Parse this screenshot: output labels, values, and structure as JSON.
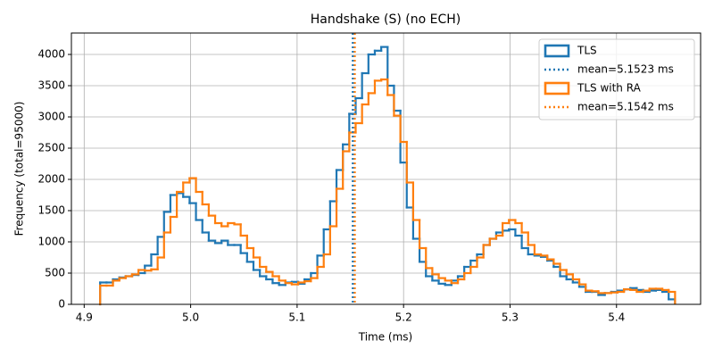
{
  "chart_data": {
    "type": "histogram",
    "title": "Handshake (S) (no ECH)",
    "x_label": "Time (ms)",
    "y_label": "Frequency (total=95000)",
    "bins": [
      4.915,
      4.921,
      4.927,
      4.933,
      4.939,
      4.945,
      4.951,
      4.957,
      4.963,
      4.969,
      4.975,
      4.981,
      4.987,
      4.993,
      4.999,
      5.005,
      5.011,
      5.017,
      5.023,
      5.029,
      5.035,
      5.041,
      5.047,
      5.053,
      5.059,
      5.065,
      5.071,
      5.077,
      5.083,
      5.089,
      5.095,
      5.101,
      5.107,
      5.113,
      5.119,
      5.125,
      5.131,
      5.137,
      5.143,
      5.149,
      5.155,
      5.161,
      5.167,
      5.173,
      5.179,
      5.185,
      5.191,
      5.197,
      5.203,
      5.209,
      5.215,
      5.221,
      5.227,
      5.233,
      5.239,
      5.245,
      5.251,
      5.257,
      5.263,
      5.269,
      5.275,
      5.281,
      5.287,
      5.293,
      5.299,
      5.305,
      5.311,
      5.317,
      5.323,
      5.329,
      5.335,
      5.341,
      5.347,
      5.353,
      5.359,
      5.365,
      5.371,
      5.377,
      5.383,
      5.389,
      5.395,
      5.401,
      5.407,
      5.413,
      5.419,
      5.425,
      5.431,
      5.437,
      5.443,
      5.449,
      5.455
    ],
    "series": [
      {
        "name": "TLS",
        "color": "#1f77b4",
        "values": [
          350,
          350,
          400,
          430,
          450,
          470,
          500,
          620,
          800,
          1080,
          1480,
          1750,
          1780,
          1720,
          1620,
          1350,
          1150,
          1020,
          980,
          1020,
          950,
          950,
          820,
          680,
          550,
          450,
          400,
          340,
          310,
          350,
          360,
          330,
          400,
          500,
          780,
          1200,
          1650,
          2150,
          2560,
          3050,
          3300,
          3700,
          4000,
          4060,
          4120,
          3500,
          3100,
          2270,
          1550,
          1050,
          680,
          450,
          380,
          330,
          310,
          380,
          450,
          600,
          700,
          800,
          950,
          1050,
          1150,
          1180,
          1200,
          1100,
          900,
          800,
          780,
          760,
          700,
          600,
          450,
          400,
          350,
          280,
          200,
          200,
          150,
          180,
          200,
          220,
          240,
          260,
          230,
          200,
          220,
          230,
          200,
          80
        ]
      },
      {
        "name": "TLS with RA",
        "color": "#ff7f0e",
        "values": [
          300,
          300,
          380,
          420,
          450,
          480,
          550,
          540,
          560,
          750,
          1150,
          1400,
          1800,
          1950,
          2020,
          1800,
          1600,
          1420,
          1300,
          1250,
          1300,
          1280,
          1100,
          900,
          750,
          600,
          520,
          450,
          380,
          340,
          320,
          350,
          370,
          420,
          600,
          800,
          1250,
          1850,
          2450,
          2750,
          2900,
          3200,
          3380,
          3580,
          3600,
          3350,
          3020,
          2600,
          1950,
          1350,
          900,
          580,
          480,
          420,
          380,
          340,
          400,
          500,
          600,
          750,
          950,
          1050,
          1100,
          1300,
          1350,
          1300,
          1150,
          950,
          800,
          780,
          720,
          650,
          550,
          480,
          400,
          320,
          220,
          210,
          180,
          180,
          190,
          200,
          240,
          230,
          200,
          220,
          250,
          250,
          230,
          200
        ]
      }
    ],
    "vlines": [
      {
        "label": "mean=5.1523 ms",
        "value": 5.1523,
        "color": "#1f77b4"
      },
      {
        "label": "mean=5.1542 ms",
        "value": 5.1542,
        "color": "#ff7f0e"
      }
    ],
    "xlim": [
      4.888,
      5.479
    ],
    "ylim": [
      0,
      4343
    ],
    "xticks": [
      4.9,
      {
        "value": 5,
        "label": "5.0"
      },
      5.1,
      5.2,
      5.3,
      5.4
    ],
    "yticks": [
      0,
      500,
      1000,
      1500,
      2000,
      2500,
      3000,
      3500,
      4000
    ],
    "grid": true,
    "legend": "upper right"
  }
}
